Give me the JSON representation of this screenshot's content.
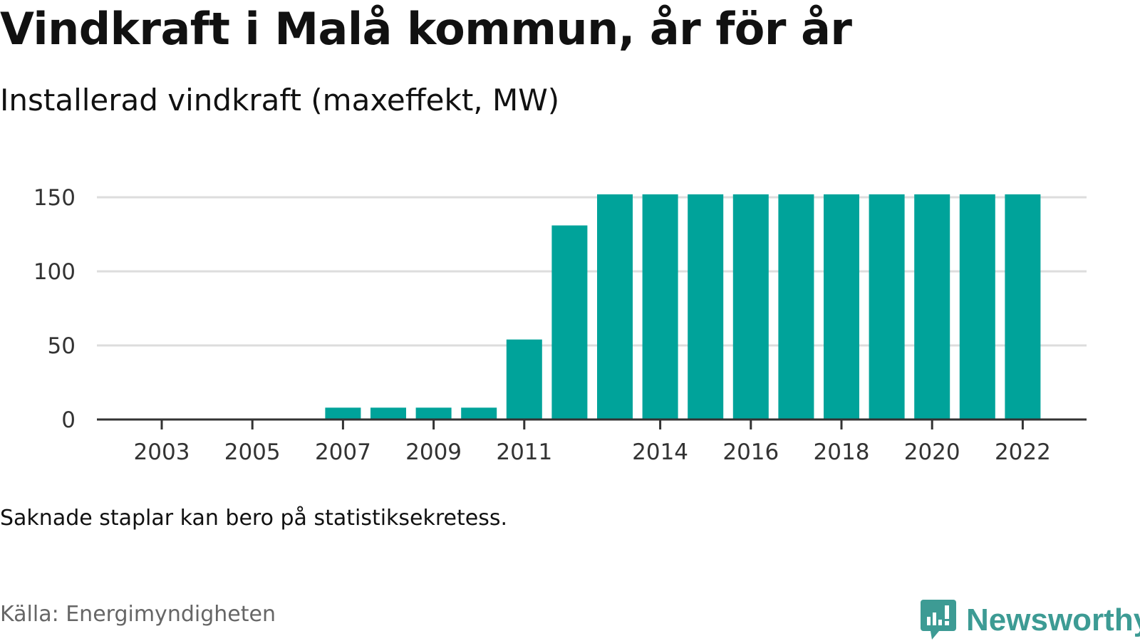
{
  "title": "Vindkraft i Malå kommun, år för år",
  "subtitle": "Installerad vindkraft (maxeffekt, MW)",
  "note": "Saknade staplar kan bero på statistiksekretess.",
  "source": "Källa: Energimyndigheten",
  "logo": {
    "icon": "newsworthy-chart-bubble-icon",
    "text": "Newsworthy"
  },
  "colors": {
    "bar": "#00a39a",
    "grid": "#dddddd",
    "axis": "#333333",
    "logo": "#3d9b94"
  },
  "chart_data": {
    "type": "bar",
    "categories": [
      2003,
      2004,
      2005,
      2006,
      2007,
      2008,
      2009,
      2010,
      2011,
      2012,
      2013,
      2014,
      2015,
      2016,
      2017,
      2018,
      2019,
      2020,
      2021,
      2022
    ],
    "values": [
      0,
      0,
      0,
      0,
      8,
      8,
      8,
      8,
      54,
      131,
      152,
      152,
      152,
      152,
      152,
      152,
      152,
      152,
      152,
      152
    ],
    "x_tick_labels": [
      "2003",
      "2005",
      "2007",
      "2009",
      "2011",
      "2014",
      "2016",
      "2018",
      "2020",
      "2022"
    ],
    "y_ticks": [
      0,
      50,
      100,
      150
    ],
    "ylim": [
      0,
      150
    ],
    "xlabel": "",
    "ylabel": "",
    "grid": true,
    "legend": "none"
  }
}
